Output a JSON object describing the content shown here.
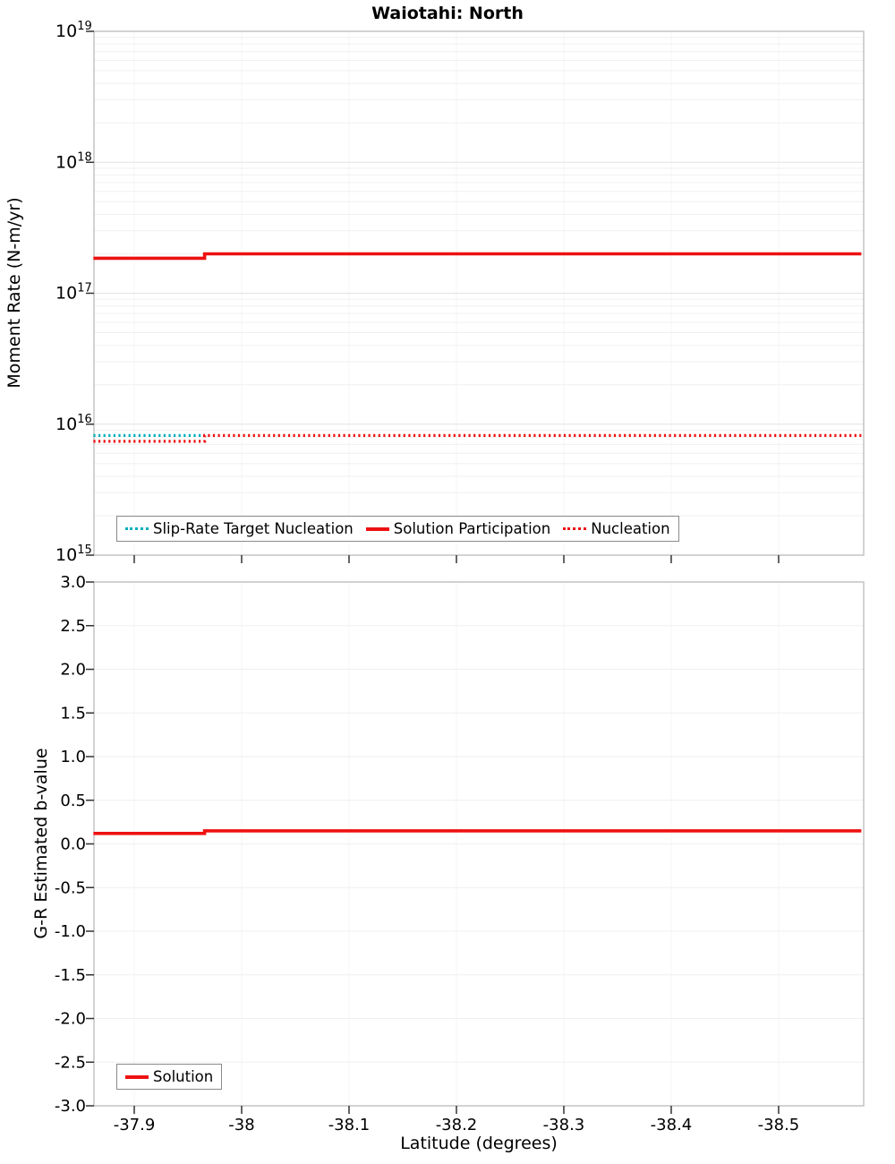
{
  "x_axis": {
    "label": "Latitude (degrees)",
    "lim": [
      -37.8625,
      -38.5792
    ],
    "ticks": [
      -37.9,
      -38,
      -38.1,
      -38.2,
      -38.3,
      -38.4,
      -38.5
    ],
    "tick_labels": [
      "-37.9",
      "-38",
      "-38.1",
      "-38.2",
      "-38.3",
      "-38.4",
      "-38.5"
    ]
  },
  "chart_data": [
    {
      "type": "line",
      "title": "Waiotahi: North",
      "ylabel": "Moment Rate (N-m/yr)",
      "yscale": "log",
      "ylim_exp": [
        15,
        19
      ],
      "ytick_exponents": [
        15,
        16,
        17,
        18,
        19
      ],
      "grid": true,
      "legend_position": "bottom-inside",
      "series": [
        {
          "name": "Slip-Rate Target Nucleation",
          "color": "#00aebb",
          "dash": "dotted",
          "x": [
            -37.862,
            -37.9655
          ],
          "y": [
            8200000000000000.0,
            8200000000000000.0
          ]
        },
        {
          "name": "Solution Participation",
          "color": "#ee1111",
          "dash": "solid",
          "x": [
            -37.862,
            -37.9655,
            -37.9655,
            -38.577
          ],
          "y": [
            1.85e+17,
            1.85e+17,
            2e+17,
            2e+17
          ]
        },
        {
          "name": "Nucleation",
          "color": "#ee1111",
          "dash": "dotted",
          "x": [
            -37.862,
            -37.9655,
            -37.9655,
            -38.577
          ],
          "y": [
            7400000000000000.0,
            7400000000000000.0,
            8200000000000000.0,
            8200000000000000.0
          ]
        }
      ]
    },
    {
      "type": "line",
      "title": "",
      "ylabel": "G-R Estimated b-value",
      "yscale": "linear",
      "ylim": [
        -3,
        3
      ],
      "yticks": [
        3,
        2.5,
        2,
        1.5,
        1,
        0.5,
        0,
        -0.5,
        -1,
        -1.5,
        -2,
        -2.5,
        -3
      ],
      "ytick_labels": [
        "3.0",
        "2.5",
        "2.0",
        "1.5",
        "1.0",
        "0.5",
        "0.0",
        "-0.5",
        "-1.0",
        "-1.5",
        "-2.0",
        "-2.5",
        "-3.0"
      ],
      "grid": true,
      "legend_position": "bottom-left-inside",
      "series": [
        {
          "name": "Solution",
          "color": "#ee1111",
          "dash": "solid",
          "x": [
            -37.862,
            -37.9655,
            -37.9655,
            -38.577
          ],
          "y": [
            0.12,
            0.12,
            0.15,
            0.15
          ]
        }
      ]
    }
  ],
  "colors": {
    "solution_red": "#ee1111",
    "slip_rate_teal": "#00aebb",
    "major_grid": "#e2e2e2",
    "minor_grid": "#f0f0f0",
    "border": "#c4c4c4"
  }
}
